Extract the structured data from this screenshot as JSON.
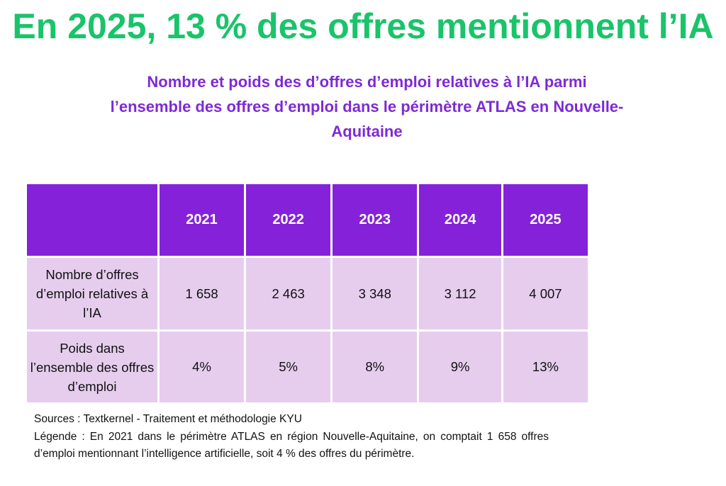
{
  "headline": "En 2025, 13 % des offres mentionnent l’IA",
  "subtitle": "Nombre et poids des d’offres d’emploi relatives à l’IA parmi l’ensemble des offres d’emploi dans le périmètre ATLAS en Nouvelle-Aquitaine",
  "table": {
    "corner": "",
    "years": [
      "2021",
      "2022",
      "2023",
      "2024",
      "2025"
    ],
    "rows": [
      {
        "label": "Nombre d’offres d’emploi relatives à l’IA",
        "values": [
          "1 658",
          "2 463",
          "3 348",
          "3 112",
          "4 007"
        ]
      },
      {
        "label": "Poids dans l’ensemble des offres d’emploi",
        "values": [
          "4%",
          "5%",
          "8%",
          "9%",
          "13%"
        ]
      }
    ]
  },
  "notes": {
    "sources": "Sources : Textkernel - Traitement et méthodologie KYU",
    "legende": "Légende : En 2021 dans le périmètre ATLAS en région Nouvelle-Aquitaine, on comptait 1 658 offres d’emploi mentionnant l’intelligence artificielle, soit 4 % des offres du périmètre."
  },
  "colors": {
    "headline": "#19c46a",
    "subtitle": "#7e2ad6",
    "header_fill": "#8522d9",
    "cell_fill": "#e6cdee"
  }
}
